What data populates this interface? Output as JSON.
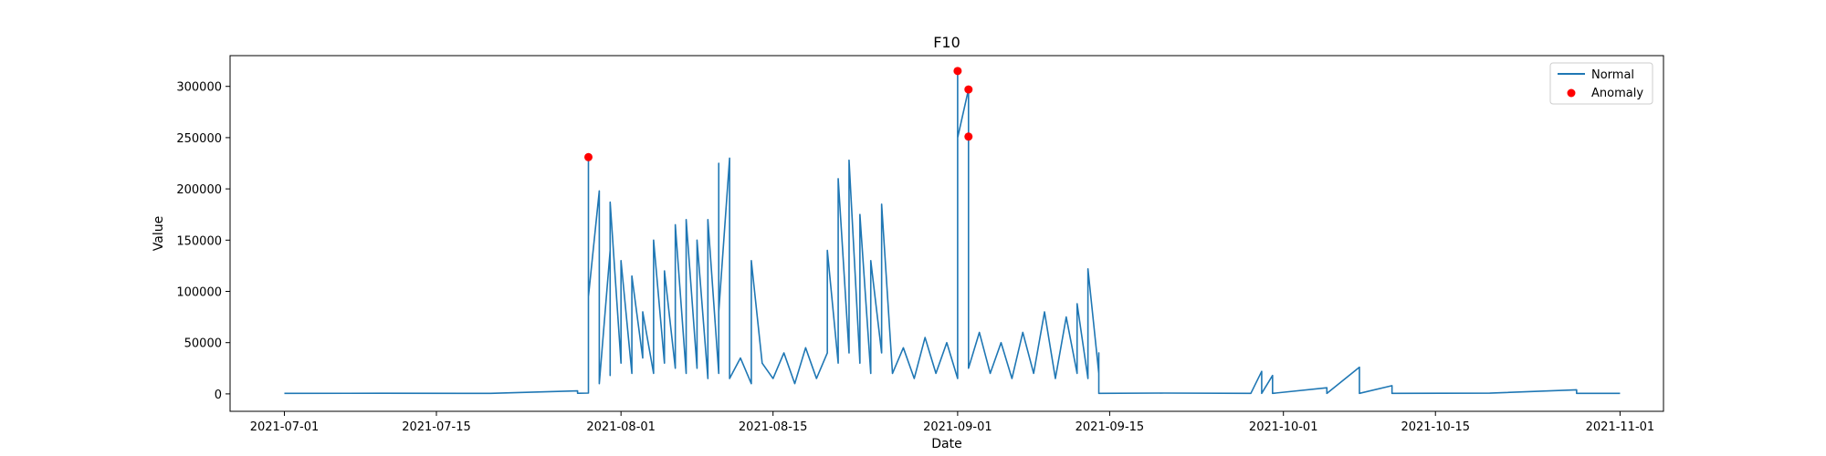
{
  "chart_data": {
    "type": "line",
    "title": "F10",
    "xlabel": "Date",
    "ylabel": "Value",
    "xlim": [
      "2021-06-26",
      "2021-11-05"
    ],
    "ylim": [
      -17000,
      330000
    ],
    "x_ticks": [
      "2021-07-01",
      "2021-07-15",
      "2021-08-01",
      "2021-08-15",
      "2021-09-01",
      "2021-09-15",
      "2021-10-01",
      "2021-10-15",
      "2021-11-01"
    ],
    "y_ticks": [
      0,
      50000,
      100000,
      150000,
      200000,
      250000,
      300000
    ],
    "y_tick_labels": [
      "0",
      "50000",
      "100000",
      "150000",
      "200000",
      "250000",
      "300000"
    ],
    "grid": false,
    "legend_position": "top-right",
    "colors": {
      "normal": "#1f77b4",
      "anomaly": "#ff0000"
    },
    "series": [
      {
        "name": "Normal",
        "kind": "line",
        "points": [
          [
            "2021-07-01",
            500
          ],
          [
            "2021-07-10",
            600
          ],
          [
            "2021-07-20",
            500
          ],
          [
            "2021-07-28",
            3000
          ],
          [
            "2021-07-28",
            600
          ],
          [
            "2021-07-29",
            800
          ],
          [
            "2021-07-29",
            231000
          ],
          [
            "2021-07-29",
            95000
          ],
          [
            "2021-07-30",
            198000
          ],
          [
            "2021-07-30",
            10000
          ],
          [
            "2021-07-31",
            140000
          ],
          [
            "2021-07-31",
            18000
          ],
          [
            "2021-07-31",
            187000
          ],
          [
            "2021-08-01",
            30000
          ],
          [
            "2021-08-01",
            130000
          ],
          [
            "2021-08-02",
            20000
          ],
          [
            "2021-08-02",
            115000
          ],
          [
            "2021-08-03",
            35000
          ],
          [
            "2021-08-03",
            80000
          ],
          [
            "2021-08-04",
            20000
          ],
          [
            "2021-08-04",
            150000
          ],
          [
            "2021-08-05",
            30000
          ],
          [
            "2021-08-05",
            120000
          ],
          [
            "2021-08-06",
            25000
          ],
          [
            "2021-08-06",
            165000
          ],
          [
            "2021-08-07",
            20000
          ],
          [
            "2021-08-07",
            170000
          ],
          [
            "2021-08-08",
            25000
          ],
          [
            "2021-08-08",
            150000
          ],
          [
            "2021-08-09",
            15000
          ],
          [
            "2021-08-09",
            170000
          ],
          [
            "2021-08-10",
            20000
          ],
          [
            "2021-08-10",
            225000
          ],
          [
            "2021-08-10",
            80000
          ],
          [
            "2021-08-11",
            230000
          ],
          [
            "2021-08-11",
            15000
          ],
          [
            "2021-08-12",
            35000
          ],
          [
            "2021-08-13",
            10000
          ],
          [
            "2021-08-13",
            130000
          ],
          [
            "2021-08-14",
            30000
          ],
          [
            "2021-08-15",
            15000
          ],
          [
            "2021-08-16",
            40000
          ],
          [
            "2021-08-17",
            10000
          ],
          [
            "2021-08-18",
            45000
          ],
          [
            "2021-08-19",
            15000
          ],
          [
            "2021-08-20",
            40000
          ],
          [
            "2021-08-20",
            140000
          ],
          [
            "2021-08-21",
            30000
          ],
          [
            "2021-08-21",
            210000
          ],
          [
            "2021-08-22",
            40000
          ],
          [
            "2021-08-22",
            228000
          ],
          [
            "2021-08-23",
            30000
          ],
          [
            "2021-08-23",
            175000
          ],
          [
            "2021-08-24",
            20000
          ],
          [
            "2021-08-24",
            130000
          ],
          [
            "2021-08-25",
            40000
          ],
          [
            "2021-08-25",
            185000
          ],
          [
            "2021-08-26",
            20000
          ],
          [
            "2021-08-27",
            45000
          ],
          [
            "2021-08-28",
            15000
          ],
          [
            "2021-08-29",
            55000
          ],
          [
            "2021-08-30",
            20000
          ],
          [
            "2021-08-31",
            50000
          ],
          [
            "2021-09-01",
            15000
          ],
          [
            "2021-09-01",
            200000
          ],
          [
            "2021-09-01",
            150000
          ],
          [
            "2021-09-01",
            315000
          ],
          [
            "2021-09-01",
            250000
          ],
          [
            "2021-09-02",
            297000
          ],
          [
            "2021-09-02",
            25000
          ],
          [
            "2021-09-03",
            60000
          ],
          [
            "2021-09-04",
            20000
          ],
          [
            "2021-09-05",
            50000
          ],
          [
            "2021-09-06",
            15000
          ],
          [
            "2021-09-07",
            60000
          ],
          [
            "2021-09-08",
            20000
          ],
          [
            "2021-09-09",
            80000
          ],
          [
            "2021-09-10",
            15000
          ],
          [
            "2021-09-11",
            75000
          ],
          [
            "2021-09-12",
            20000
          ],
          [
            "2021-09-12",
            88000
          ],
          [
            "2021-09-13",
            15000
          ],
          [
            "2021-09-13",
            122000
          ],
          [
            "2021-09-14",
            20000
          ],
          [
            "2021-09-14",
            40000
          ],
          [
            "2021-09-14",
            500
          ],
          [
            "2021-09-20",
            800
          ],
          [
            "2021-09-28",
            500
          ],
          [
            "2021-09-29",
            22000
          ],
          [
            "2021-09-29",
            500
          ],
          [
            "2021-09-30",
            18000
          ],
          [
            "2021-09-30",
            500
          ],
          [
            "2021-10-05",
            6000
          ],
          [
            "2021-10-05",
            500
          ],
          [
            "2021-10-08",
            26000
          ],
          [
            "2021-10-08",
            500
          ],
          [
            "2021-10-11",
            8000
          ],
          [
            "2021-10-11",
            500
          ],
          [
            "2021-10-20",
            700
          ],
          [
            "2021-10-28",
            4000
          ],
          [
            "2021-10-28",
            500
          ],
          [
            "2021-11-01",
            500
          ]
        ]
      },
      {
        "name": "Anomaly",
        "kind": "scatter",
        "points": [
          [
            "2021-07-29",
            231000
          ],
          [
            "2021-09-01",
            315000
          ],
          [
            "2021-09-02",
            297000
          ],
          [
            "2021-09-02",
            251000
          ]
        ]
      }
    ]
  }
}
